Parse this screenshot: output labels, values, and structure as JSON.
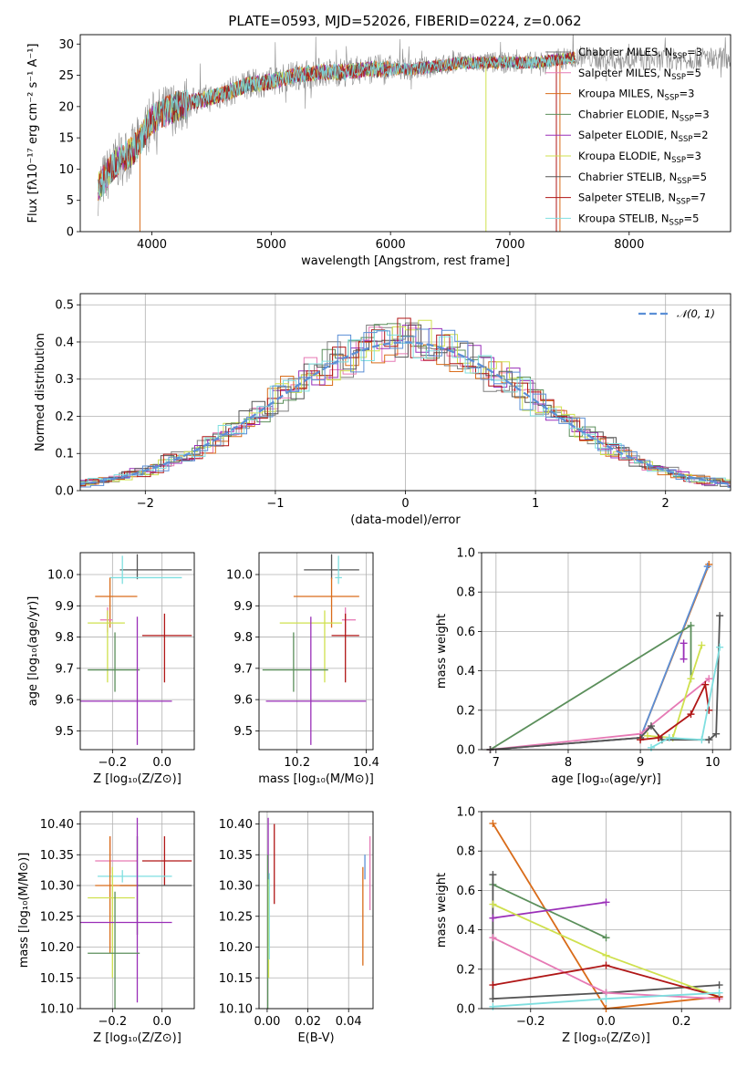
{
  "title": "PLATE=0593, MJD=52026, FIBERID=0224, z=0.062",
  "colors": {
    "c1": "#7f7f7f",
    "c2": "#e67ab5",
    "c3": "#d96c1a",
    "c4": "#5b8f5b",
    "c5": "#9a2fb8",
    "c6": "#cfe04e",
    "c7": "#555555",
    "c8": "#b01616",
    "c9": "#7fdfe0"
  },
  "chart_data": [
    {
      "id": "spectrum",
      "type": "line",
      "xlabel": "wavelength [Angstrom, rest frame]",
      "ylabel": "Flux [fλ10⁻¹⁷ erg cm⁻² s⁻¹ A⁻¹]",
      "xlim": [
        3400,
        8850
      ],
      "ylim": [
        0,
        31.5
      ],
      "xticks": [
        4000,
        5000,
        6000,
        7000,
        8000
      ],
      "yticks": [
        0,
        5,
        10,
        15,
        20,
        25,
        30
      ],
      "legend_position": "upper-right",
      "legend": [
        {
          "label": "Chabrier MILES, N",
          "sub": "SSP",
          "tail": "=3",
          "color": "#7f7f7f"
        },
        {
          "label": "Salpeter MILES, N",
          "sub": "SSP",
          "tail": "=5",
          "color": "#e67ab5"
        },
        {
          "label": "Kroupa MILES, N",
          "sub": "SSP",
          "tail": "=3",
          "color": "#d96c1a"
        },
        {
          "label": "Chabrier ELODIE, N",
          "sub": "SSP",
          "tail": "=3",
          "color": "#5b8f5b"
        },
        {
          "label": "Salpeter ELODIE, N",
          "sub": "SSP",
          "tail": "=2",
          "color": "#9a2fb8"
        },
        {
          "label": "Kroupa ELODIE, N",
          "sub": "SSP",
          "tail": "=3",
          "color": "#cfe04e"
        },
        {
          "label": "Chabrier STELIB, N",
          "sub": "SSP",
          "tail": "=5",
          "color": "#555555"
        },
        {
          "label": "Salpeter STELIB, N",
          "sub": "SSP",
          "tail": "=7",
          "color": "#b01616"
        },
        {
          "label": "Kroupa STELIB, N",
          "sub": "SSP",
          "tail": "=5",
          "color": "#7fdfe0"
        }
      ],
      "continuum": [
        [
          3550,
          7
        ],
        [
          3700,
          11
        ],
        [
          3850,
          13
        ],
        [
          4000,
          18
        ],
        [
          4200,
          20
        ],
        [
          4400,
          21
        ],
        [
          4600,
          22
        ],
        [
          4800,
          23.5
        ],
        [
          5000,
          24
        ],
        [
          5200,
          25
        ],
        [
          5400,
          25.5
        ],
        [
          5600,
          25.5
        ],
        [
          5800,
          26
        ],
        [
          6000,
          26
        ],
        [
          6200,
          26
        ],
        [
          6400,
          26.5
        ],
        [
          6600,
          27
        ],
        [
          6800,
          27
        ],
        [
          7000,
          27
        ],
        [
          7200,
          27
        ],
        [
          7400,
          27.5
        ],
        [
          7600,
          28
        ],
        [
          7800,
          27.5
        ],
        [
          8000,
          27.5
        ],
        [
          8200,
          27.5
        ],
        [
          8400,
          27.5
        ],
        [
          8600,
          27.8
        ],
        [
          8850,
          27.8
        ]
      ]
    },
    {
      "id": "residuals",
      "type": "line",
      "xlabel": "(data-model)/error",
      "ylabel": "Normed distribution",
      "xlim": [
        -2.5,
        2.5
      ],
      "ylim": [
        0,
        0.53
      ],
      "xticks": [
        -2,
        -1,
        0,
        1,
        2
      ],
      "yticks": [
        0.0,
        0.1,
        0.2,
        0.3,
        0.4,
        0.5
      ],
      "legend_label": "𝒩(0, 1)",
      "legend_position": "upper-right",
      "gaussian": {
        "mean": 0,
        "sigma": 1,
        "color": "#5b8fd6"
      }
    },
    {
      "id": "age-vs-Z",
      "type": "scatter",
      "xlabel": "Z [log₁₀(Z/Z⊙)]",
      "ylabel": "age  [log₁₀(age/yr)]",
      "xlim": [
        -0.33,
        0.13
      ],
      "ylim": [
        9.44,
        10.07
      ],
      "xticks": [
        -0.2,
        0.0
      ],
      "yticks": [
        9.5,
        9.6,
        9.7,
        9.8,
        9.9,
        10.0
      ],
      "points": [
        {
          "x": -0.1,
          "y": 10.015,
          "xerr": [
            0.07,
            0.22
          ],
          "yerr": [
            0.03,
            0.05
          ],
          "color": "#555555"
        },
        {
          "x": -0.16,
          "y": 9.99,
          "xerr": [
            0.05,
            0.24
          ],
          "yerr": [
            0.02,
            0.07
          ],
          "color": "#7fdfe0"
        },
        {
          "x": -0.21,
          "y": 9.93,
          "xerr": [
            0.06,
            0.11
          ],
          "yerr": [
            0.1,
            0.06
          ],
          "color": "#d96c1a"
        },
        {
          "x": -0.22,
          "y": 9.855,
          "xerr": [
            0.03,
            0.02
          ],
          "yerr": [
            0.04,
            0.04
          ],
          "color": "#e67ab5"
        },
        {
          "x": -0.22,
          "y": 9.845,
          "xerr": [
            0.08,
            0.07
          ],
          "yerr": [
            0.19,
            0.04
          ],
          "color": "#cfe04e"
        },
        {
          "x": 0.01,
          "y": 9.805,
          "xerr": [
            0.09,
            0.11
          ],
          "yerr": [
            0.15,
            0.07
          ],
          "color": "#b01616"
        },
        {
          "x": -0.19,
          "y": 9.695,
          "xerr": [
            0.11,
            0.1
          ],
          "yerr": [
            0.07,
            0.12
          ],
          "color": "#5b8f5b"
        },
        {
          "x": -0.1,
          "y": 9.595,
          "xerr": [
            0.23,
            0.14
          ],
          "yerr": [
            0.14,
            0.27
          ],
          "color": "#9a2fb8"
        }
      ]
    },
    {
      "id": "age-vs-mass",
      "type": "scatter",
      "xlabel": "mass [log₁₀(M/M⊙)]",
      "ylabel": "",
      "xlim": [
        10.09,
        10.42
      ],
      "ylim": [
        9.44,
        10.07
      ],
      "xticks": [
        10.2,
        10.4
      ],
      "yticks": [
        9.5,
        9.6,
        9.7,
        9.8,
        9.9,
        10.0
      ],
      "points": [
        {
          "x": 10.3,
          "y": 10.015,
          "xerr": [
            0.08,
            0.08
          ],
          "yerr": [
            0.03,
            0.05
          ],
          "color": "#555555"
        },
        {
          "x": 10.32,
          "y": 9.99,
          "xerr": [
            0.01,
            0.01
          ],
          "yerr": [
            0.02,
            0.07
          ],
          "color": "#7fdfe0"
        },
        {
          "x": 10.3,
          "y": 9.93,
          "xerr": [
            0.11,
            0.08
          ],
          "yerr": [
            0.1,
            0.06
          ],
          "color": "#d96c1a"
        },
        {
          "x": 10.34,
          "y": 9.855,
          "xerr": [
            0.01,
            0.03
          ],
          "yerr": [
            0.04,
            0.04
          ],
          "color": "#e67ab5"
        },
        {
          "x": 10.28,
          "y": 9.845,
          "xerr": [
            0.13,
            0.05
          ],
          "yerr": [
            0.19,
            0.04
          ],
          "color": "#cfe04e"
        },
        {
          "x": 10.34,
          "y": 9.805,
          "xerr": [
            0.04,
            0.04
          ],
          "yerr": [
            0.15,
            0.07
          ],
          "color": "#b01616"
        },
        {
          "x": 10.19,
          "y": 9.695,
          "xerr": [
            0.09,
            0.1
          ],
          "yerr": [
            0.07,
            0.12
          ],
          "color": "#5b8f5b"
        },
        {
          "x": 10.24,
          "y": 9.595,
          "xerr": [
            0.13,
            0.16
          ],
          "yerr": [
            0.14,
            0.27
          ],
          "color": "#9a2fb8"
        }
      ]
    },
    {
      "id": "mass-weight-vs-age",
      "type": "line",
      "xlabel": "age  [log₁₀(age/yr)]",
      "ylabel": "mass weight",
      "xlim": [
        6.8,
        10.25
      ],
      "ylim": [
        0,
        1.0
      ],
      "xticks": [
        7,
        8,
        9,
        10
      ],
      "yticks": [
        0.0,
        0.2,
        0.4,
        0.6,
        0.8,
        1.0
      ],
      "series": [
        {
          "color": "#d96c1a",
          "points": [
            [
              6.92,
              0.0
            ],
            [
              9.0,
              0.06
            ],
            [
              9.95,
              0.94
            ]
          ]
        },
        {
          "color": "#5b8fd6",
          "points": [
            [
              6.92,
              0.0
            ],
            [
              9.0,
              0.06
            ],
            [
              9.93,
              0.93
            ]
          ]
        },
        {
          "color": "#5b8f5b",
          "points": [
            [
              6.92,
              0.0
            ],
            [
              9.7,
              0.63
            ],
            [
              9.7,
              0.36
            ]
          ]
        },
        {
          "color": "#e67ab5",
          "points": [
            [
              6.92,
              0.0
            ],
            [
              9.0,
              0.08
            ],
            [
              9.95,
              0.36
            ]
          ]
        },
        {
          "color": "#9a2fb8",
          "points": [
            [
              9.6,
              0.54
            ],
            [
              9.6,
              0.46
            ]
          ]
        },
        {
          "color": "#cfe04e",
          "points": [
            [
              9.1,
              0.07
            ],
            [
              9.45,
              0.06
            ],
            [
              9.7,
              0.36
            ],
            [
              9.85,
              0.53
            ]
          ]
        },
        {
          "color": "#555555",
          "points": [
            [
              6.92,
              0.0
            ],
            [
              9.0,
              0.06
            ],
            [
              9.15,
              0.12
            ],
            [
              9.3,
              0.05
            ],
            [
              9.95,
              0.05
            ],
            [
              10.05,
              0.08
            ],
            [
              10.1,
              0.68
            ]
          ]
        },
        {
          "color": "#b01616",
          "points": [
            [
              9.0,
              0.05
            ],
            [
              9.25,
              0.06
            ],
            [
              9.7,
              0.18
            ],
            [
              9.9,
              0.33
            ],
            [
              9.95,
              0.2
            ]
          ]
        },
        {
          "color": "#7fdfe0",
          "points": [
            [
              9.15,
              0.01
            ],
            [
              9.4,
              0.06
            ],
            [
              9.85,
              0.05
            ],
            [
              10.1,
              0.52
            ]
          ]
        }
      ]
    },
    {
      "id": "mass-vs-Z",
      "type": "scatter",
      "xlabel": "Z [log₁₀(Z/Z⊙)]",
      "ylabel": "mass [log₁₀(M/M⊙)]",
      "xlim": [
        -0.33,
        0.13
      ],
      "ylim": [
        10.1,
        10.42
      ],
      "xticks": [
        -0.2,
        0.0
      ],
      "yticks": [
        10.1,
        10.15,
        10.2,
        10.25,
        10.3,
        10.35,
        10.4
      ],
      "points": [
        {
          "x": 0.01,
          "y": 10.34,
          "xerr": [
            0.09,
            0.11
          ],
          "yerr": [
            0.04,
            0.04
          ],
          "color": "#b01616"
        },
        {
          "x": -0.21,
          "y": 10.34,
          "xerr": [
            0.06,
            0.11
          ],
          "yerr": [
            0.02,
            0.04
          ],
          "color": "#e67ab5"
        },
        {
          "x": -0.1,
          "y": 10.3,
          "xerr": [
            0.07,
            0.22
          ],
          "yerr": [
            0.08,
            0.08
          ],
          "color": "#555555"
        },
        {
          "x": -0.16,
          "y": 10.315,
          "xerr": [
            0.1,
            0.2
          ],
          "yerr": [
            0.01,
            0.01
          ],
          "color": "#7fdfe0"
        },
        {
          "x": -0.21,
          "y": 10.3,
          "xerr": [
            0.06,
            0.11
          ],
          "yerr": [
            0.11,
            0.08
          ],
          "color": "#d96c1a"
        },
        {
          "x": -0.2,
          "y": 10.28,
          "xerr": [
            0.1,
            0.09
          ],
          "yerr": [
            0.13,
            0.05
          ],
          "color": "#cfe04e"
        },
        {
          "x": -0.1,
          "y": 10.24,
          "xerr": [
            0.23,
            0.14
          ],
          "yerr": [
            0.13,
            0.17
          ],
          "color": "#9a2fb8"
        },
        {
          "x": -0.19,
          "y": 10.19,
          "xerr": [
            0.11,
            0.1
          ],
          "yerr": [
            0.09,
            0.1
          ],
          "color": "#5b8f5b"
        }
      ]
    },
    {
      "id": "mass-vs-EBV",
      "type": "scatter",
      "xlabel": "E(B-V)",
      "ylabel": "",
      "xlim": [
        -0.004,
        0.052
      ],
      "ylim": [
        10.1,
        10.42
      ],
      "xticks": [
        0.0,
        0.02,
        0.04
      ],
      "yticks": [
        10.1,
        10.15,
        10.2,
        10.25,
        10.3,
        10.35,
        10.4
      ],
      "points": [
        {
          "x": 0.0005,
          "y": 10.36,
          "yerr": [
            0.08,
            0.05
          ],
          "color": "#9a2fb8"
        },
        {
          "x": 0.0003,
          "y": 10.3,
          "yerr": [
            0.2,
            0.05
          ],
          "color": "#5b8f5b"
        },
        {
          "x": 0.0007,
          "y": 10.25,
          "yerr": [
            0.1,
            0.06
          ],
          "color": "#cfe04e"
        },
        {
          "x": 0.001,
          "y": 10.28,
          "yerr": [
            0.1,
            0.04
          ],
          "color": "#7fdfe0"
        },
        {
          "x": 0.0035,
          "y": 10.34,
          "yerr": [
            0.07,
            0.06
          ],
          "color": "#b01616"
        },
        {
          "x": 0.047,
          "y": 10.24,
          "yerr": [
            0.07,
            0.09
          ],
          "color": "#d96c1a"
        },
        {
          "x": 0.048,
          "y": 10.33,
          "yerr": [
            0.02,
            0.02
          ],
          "color": "#5b8fd6"
        },
        {
          "x": 0.0505,
          "y": 10.32,
          "yerr": [
            0.06,
            0.06
          ],
          "color": "#e67ab5"
        }
      ]
    },
    {
      "id": "mass-weight-vs-Z",
      "type": "line",
      "xlabel": "Z [log₁₀(Z/Z⊙)]",
      "ylabel": "mass weight",
      "xlim": [
        -0.33,
        0.33
      ],
      "ylim": [
        0,
        1.0
      ],
      "xticks": [
        -0.2,
        0.0,
        0.2
      ],
      "yticks": [
        0.0,
        0.2,
        0.4,
        0.6,
        0.8,
        1.0
      ],
      "series": [
        {
          "color": "#d96c1a",
          "points": [
            [
              -0.3,
              0.94
            ],
            [
              0.0,
              0.0
            ],
            [
              0.3,
              0.06
            ]
          ]
        },
        {
          "color": "#5b8f5b",
          "points": [
            [
              -0.3,
              0.63
            ],
            [
              0.0,
              0.36
            ]
          ]
        },
        {
          "color": "#555555",
          "points": [
            [
              -0.3,
              0.68
            ],
            [
              -0.3,
              0.05
            ],
            [
              0.0,
              0.08
            ],
            [
              0.3,
              0.12
            ]
          ]
        },
        {
          "color": "#9a2fb8",
          "points": [
            [
              -0.3,
              0.46
            ],
            [
              0.0,
              0.54
            ]
          ]
        },
        {
          "color": "#cfe04e",
          "points": [
            [
              -0.3,
              0.53
            ],
            [
              0.0,
              0.27
            ],
            [
              0.3,
              0.06
            ]
          ]
        },
        {
          "color": "#e67ab5",
          "points": [
            [
              -0.3,
              0.36
            ],
            [
              0.0,
              0.08
            ],
            [
              0.3,
              0.05
            ]
          ]
        },
        {
          "color": "#b01616",
          "points": [
            [
              -0.3,
              0.12
            ],
            [
              0.0,
              0.22
            ],
            [
              0.3,
              0.06
            ]
          ]
        },
        {
          "color": "#7fdfe0",
          "points": [
            [
              -0.3,
              0.01
            ],
            [
              0.0,
              0.05
            ],
            [
              0.3,
              0.08
            ]
          ]
        }
      ]
    }
  ]
}
